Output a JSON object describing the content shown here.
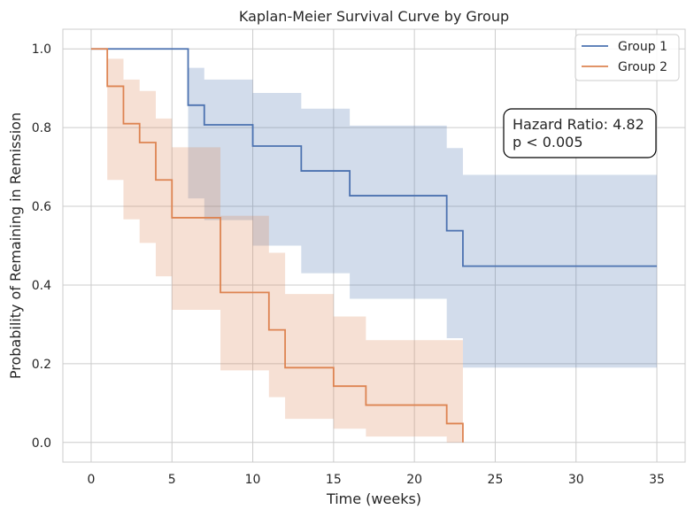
{
  "chart_data": {
    "type": "line",
    "title": "Kaplan-Meier Survival Curve by Group",
    "xlabel": "Time (weeks)",
    "ylabel": "Probability of Remaining in Remission",
    "xlim": [
      -1.75,
      36.75
    ],
    "ylim": [
      -0.05,
      1.05
    ],
    "xticks": [
      0,
      5,
      10,
      15,
      20,
      25,
      30,
      35
    ],
    "yticks": [
      0.0,
      0.2,
      0.4,
      0.6,
      0.8,
      1.0
    ],
    "xtick_labels": [
      "0",
      "5",
      "10",
      "15",
      "20",
      "25",
      "30",
      "35"
    ],
    "ytick_labels": [
      "0.0",
      "0.2",
      "0.4",
      "0.6",
      "0.8",
      "1.0"
    ],
    "grid": true,
    "legend_position": "top-right",
    "series": [
      {
        "name": "Group 1",
        "color": "#4c72b0",
        "step_x": [
          0,
          6,
          7,
          10,
          13,
          16,
          22,
          23,
          35
        ],
        "survival": [
          1.0,
          0.857,
          0.807,
          0.753,
          0.69,
          0.627,
          0.538,
          0.448,
          0.448
        ],
        "ci_lower": [
          1.0,
          0.62,
          0.565,
          0.5,
          0.43,
          0.365,
          0.265,
          0.19,
          0.19
        ],
        "ci_upper": [
          1.0,
          0.952,
          0.922,
          0.888,
          0.848,
          0.805,
          0.748,
          0.68,
          0.68
        ]
      },
      {
        "name": "Group 2",
        "color": "#dd8452",
        "step_x": [
          0,
          1,
          2,
          3,
          4,
          5,
          8,
          11,
          12,
          15,
          17,
          22,
          23
        ],
        "survival": [
          1.0,
          0.905,
          0.81,
          0.762,
          0.667,
          0.571,
          0.381,
          0.286,
          0.19,
          0.143,
          0.095,
          0.048,
          0.0
        ],
        "ci_lower": [
          1.0,
          0.667,
          0.567,
          0.507,
          0.422,
          0.337,
          0.183,
          0.115,
          0.06,
          0.035,
          0.015,
          0.0,
          0.0
        ],
        "ci_upper": [
          1.0,
          0.975,
          0.922,
          0.893,
          0.823,
          0.75,
          0.576,
          0.482,
          0.377,
          0.32,
          0.26,
          0.26,
          0.0
        ]
      }
    ],
    "annotation": {
      "lines": [
        "Hazard Ratio: 4.82",
        "p < 0.005"
      ],
      "position": "upper-right"
    }
  }
}
